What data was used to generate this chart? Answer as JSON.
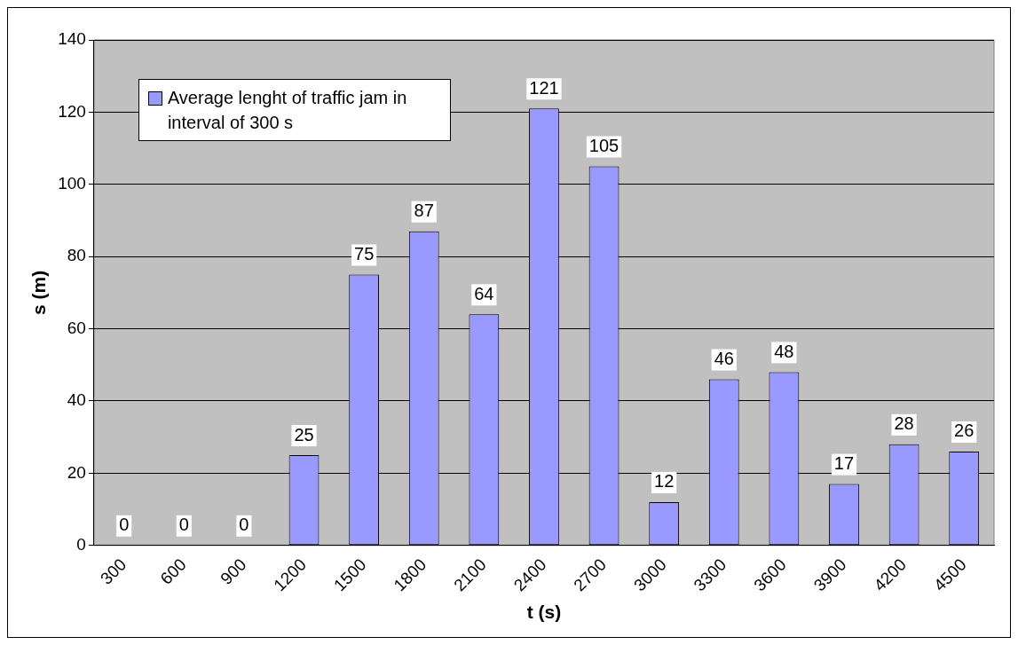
{
  "chart_data": {
    "type": "bar",
    "xlabel": "t (s)",
    "ylabel": "s (m)",
    "categories": [
      "300",
      "600",
      "900",
      "1200",
      "1500",
      "1800",
      "2100",
      "2400",
      "2700",
      "3000",
      "3300",
      "3600",
      "3900",
      "4200",
      "4500"
    ],
    "series": [
      {
        "name": "Average lenght of traffic jam in interval of 300 s",
        "color": "#9999ff",
        "values": [
          0,
          0,
          0,
          25,
          75,
          87,
          64,
          121,
          105,
          12,
          46,
          48,
          17,
          28,
          26
        ]
      }
    ],
    "ylim": [
      0,
      140
    ],
    "yticks": [
      0,
      20,
      40,
      60,
      80,
      100,
      120,
      140
    ],
    "grid": "y",
    "legend": "top left",
    "data_labels": true
  }
}
